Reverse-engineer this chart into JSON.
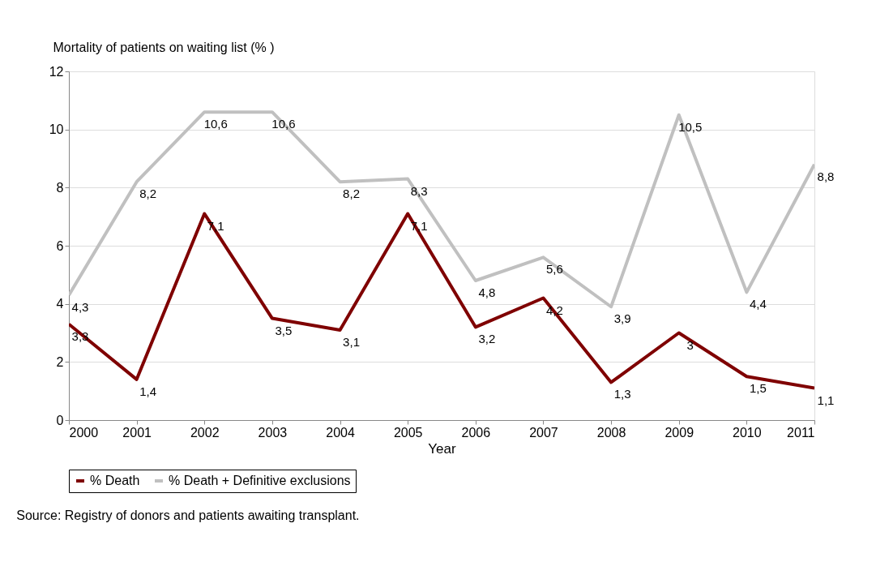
{
  "chart_data": {
    "type": "line",
    "xlabel": "Year",
    "ylabel": "Mortality of patients on waiting list (% )",
    "x": [
      2000,
      2001,
      2002,
      2003,
      2004,
      2005,
      2006,
      2007,
      2008,
      2009,
      2010,
      2011
    ],
    "series": [
      {
        "name": "% Death",
        "color": "#7f0000",
        "values": [
          3.3,
          1.4,
          7.1,
          3.5,
          3.1,
          7.1,
          3.2,
          4.2,
          1.3,
          3,
          1.5,
          1.1
        ],
        "value_labels": [
          "3,3",
          "1,4",
          "7,1",
          "3,5",
          "3,1",
          "7,1",
          "3,2",
          "4,2",
          "1,3",
          "3",
          "1,5",
          "1,1"
        ]
      },
      {
        "name": "% Death + Definitive exclusions",
        "color": "#c0c0c0",
        "values": [
          4.3,
          8.2,
          10.6,
          10.6,
          8.2,
          8.3,
          4.8,
          5.6,
          3.9,
          10.5,
          4.4,
          8.8
        ],
        "value_labels": [
          "4,3",
          "8,2",
          "10,6",
          "10,6",
          "8,2",
          "8,3",
          "4,8",
          "5,6",
          "3,9",
          "10,5",
          "4,4",
          "8,8"
        ]
      }
    ],
    "xlim": [
      2000,
      2011
    ],
    "xticks": [
      2000,
      2001,
      2002,
      2003,
      2004,
      2005,
      2006,
      2007,
      2008,
      2009,
      2010,
      2011
    ],
    "ylim": [
      0,
      12
    ],
    "yticks": [
      0,
      2,
      4,
      6,
      8,
      10,
      12
    ],
    "grid": "y",
    "legend": "bottom",
    "marker": "none",
    "line_style": "solid",
    "annotations": [
      "Source: Registry of donors and patients awaiting transplant."
    ]
  }
}
